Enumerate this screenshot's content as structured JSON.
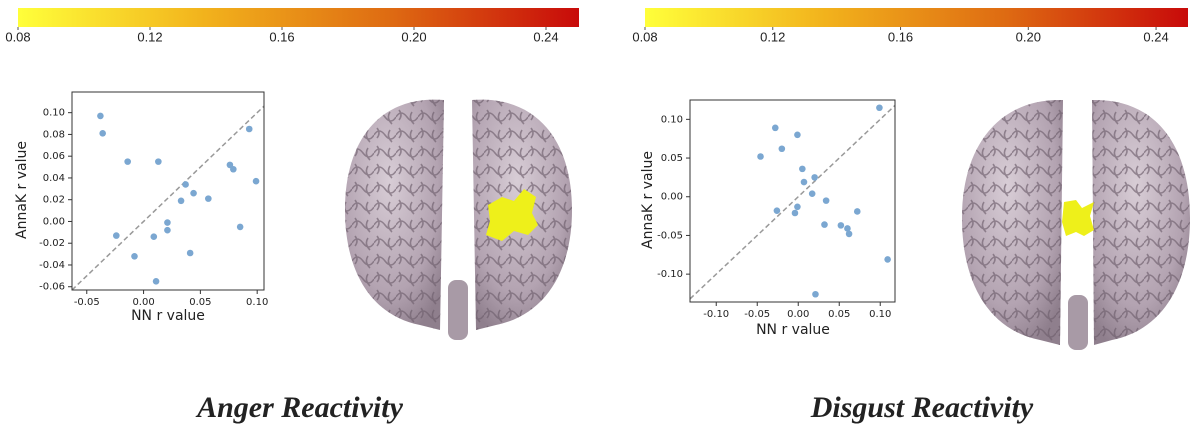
{
  "chart_data": [
    {
      "type": "colorbar",
      "vlim": [
        0.08,
        0.25
      ],
      "colors": [
        "#ffff3a",
        "#f2b21c",
        "#de6a12",
        "#c80a0a"
      ],
      "ticks": [
        0.08,
        0.12,
        0.16,
        {
          "value": 0.2,
          "label": "0.20"
        },
        0.24
      ]
    },
    {
      "type": "scatter",
      "caption": "Anger Reactivity",
      "xlabel": "NN r value",
      "ylabel": "AnnaK r value",
      "color": "#7ba7d1",
      "diagonal": true,
      "x": [
        -0.038,
        -0.036,
        -0.014,
        0.013,
        -0.024,
        -0.008,
        0.009,
        0.011,
        0.021,
        0.021,
        0.033,
        0.037,
        0.044,
        0.041,
        0.057,
        0.076,
        0.079,
        0.085,
        0.093,
        0.099
      ],
      "values": [
        0.097,
        0.081,
        0.055,
        0.055,
        -0.013,
        -0.032,
        -0.014,
        -0.055,
        -0.001,
        -0.008,
        0.019,
        0.034,
        0.026,
        -0.029,
        0.021,
        0.052,
        0.048,
        -0.005,
        0.085,
        0.037
      ],
      "xlim": [
        -0.063,
        0.106
      ],
      "ylim": [
        -0.063,
        0.119
      ],
      "xticks": [
        -0.05,
        {
          "value": 0,
          "label": "0.00"
        },
        0.05,
        {
          "value": 0.1,
          "label": "0.10"
        }
      ],
      "yticks": [
        -0.06,
        -0.04,
        -0.02,
        {
          "value": 0,
          "label": "0.00"
        },
        0.02,
        0.04,
        0.06,
        0.08,
        {
          "value": 0.1,
          "label": "0.10"
        }
      ]
    },
    {
      "type": "colorbar",
      "vlim": [
        0.08,
        0.25
      ],
      "colors": [
        "#ffff3a",
        "#f2b21c",
        "#de6a12",
        "#c80a0a"
      ],
      "ticks": [
        0.08,
        0.12,
        0.16,
        {
          "value": 0.2,
          "label": "0.20"
        },
        0.24
      ]
    },
    {
      "type": "scatter",
      "caption": "Disgust Reactivity",
      "xlabel": "NN r value",
      "ylabel": "AnnaK r value",
      "color": "#7ba7d1",
      "diagonal": true,
      "x": [
        0.099,
        -0.028,
        -0.001,
        -0.02,
        -0.046,
        0.005,
        0.02,
        0.007,
        0.017,
        0.034,
        -0.026,
        -0.004,
        -0.001,
        0.032,
        0.052,
        0.06,
        0.062,
        0.072,
        0.109,
        0.021
      ],
      "values": [
        0.115,
        0.089,
        0.08,
        0.062,
        0.052,
        0.036,
        0.025,
        0.019,
        0.004,
        -0.005,
        -0.018,
        -0.021,
        -0.013,
        -0.036,
        -0.037,
        -0.041,
        -0.048,
        -0.019,
        -0.081,
        -0.126
      ],
      "xlim": [
        -0.132,
        0.118
      ],
      "ylim": [
        -0.136,
        0.125
      ],
      "xticks": [
        {
          "value": -0.1,
          "label": "-0.10"
        },
        -0.05,
        {
          "value": 0,
          "label": "0.00"
        },
        0.05,
        {
          "value": 0.1,
          "label": "0.10"
        }
      ],
      "yticks": [
        {
          "value": -0.1,
          "label": "-0.10"
        },
        -0.05,
        {
          "value": 0,
          "label": "0.00"
        },
        0.05,
        {
          "value": 0.1,
          "label": "0.10"
        }
      ]
    }
  ]
}
